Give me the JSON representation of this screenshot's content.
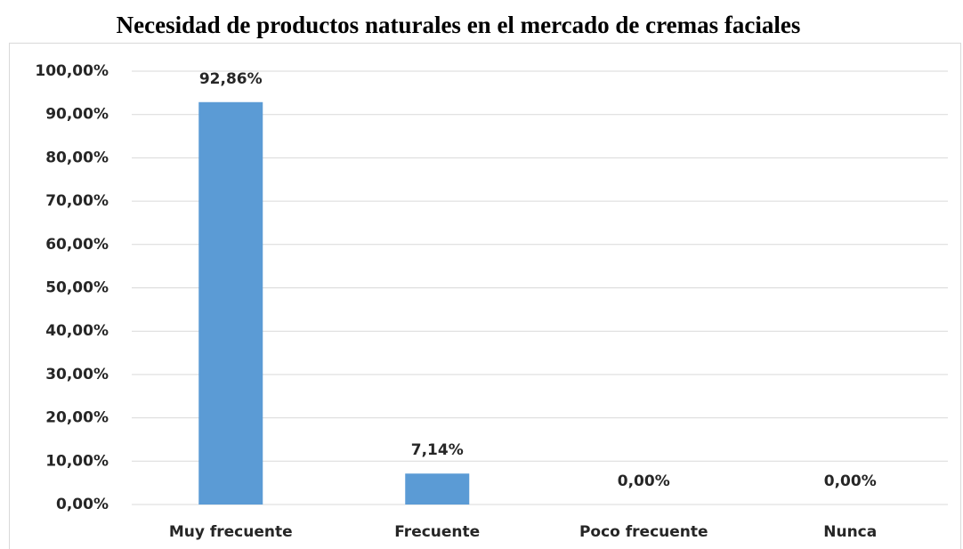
{
  "chart_data": {
    "type": "bar",
    "title": "Necesidad de productos naturales en el mercado de cremas faciales",
    "categories": [
      "Muy frecuente",
      "Frecuente",
      "Poco frecuente",
      "Nunca"
    ],
    "values": [
      92.86,
      7.14,
      0,
      0
    ],
    "value_labels": [
      "92,86%",
      "7,14%",
      "0,00%",
      "0,00%"
    ],
    "color": "#5b9bd5",
    "ylim": [
      0,
      100
    ],
    "yticks": [
      {
        "value": 0,
        "label": "0,00%"
      },
      {
        "value": 10,
        "label": "10,00%"
      },
      {
        "value": 20,
        "label": "20,00%"
      },
      {
        "value": 30,
        "label": "30,00%"
      },
      {
        "value": 40,
        "label": "40,00%"
      },
      {
        "value": 50,
        "label": "50,00%"
      },
      {
        "value": 60,
        "label": "60,00%"
      },
      {
        "value": 70,
        "label": "70,00%"
      },
      {
        "value": 80,
        "label": "80,00%"
      },
      {
        "value": 90,
        "label": "90,00%"
      },
      {
        "value": 100,
        "label": "100,00%"
      }
    ],
    "grid": true
  }
}
